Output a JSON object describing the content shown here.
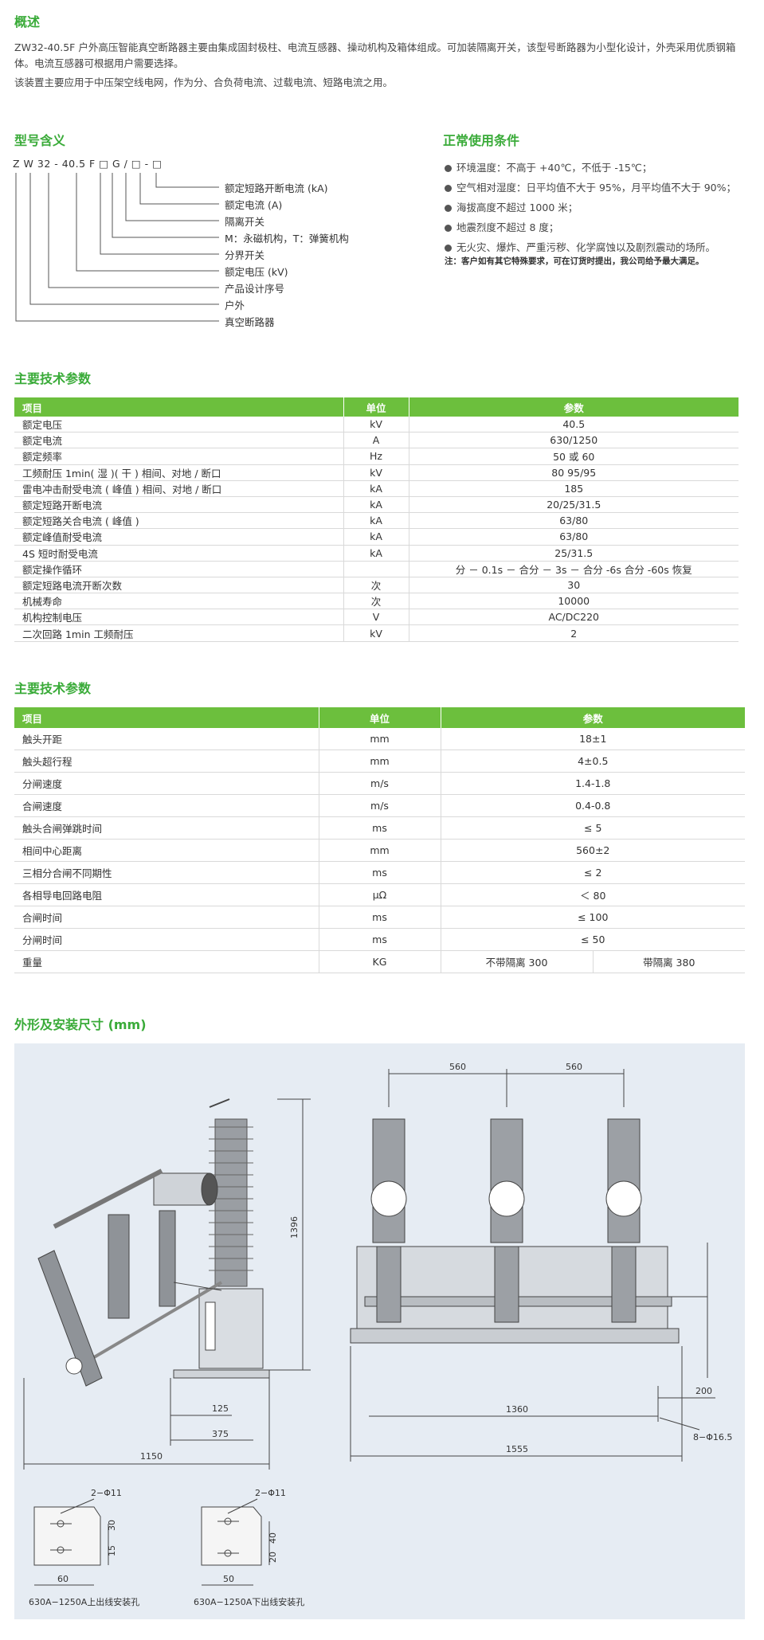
{
  "overview": {
    "title": "概述",
    "para1": "ZW32-40.5F 户外高压智能真空断路器主要由集成固封极柱、电流互感器、操动机构及箱体组成。可加装隔离开关，该型号断路器为小型化设计，外壳采用优质钢箱体。电流互感器可根据用户需要选择。",
    "para2": "该装置主要应用于中压架空线电网，作为分、合负荷电流、过载电流、短路电流之用。"
  },
  "model": {
    "title": "型号含义",
    "code": "Z W 32 - 40.5 F □ G / □ - □",
    "labels": [
      "额定短路开断电流 (kA)",
      "额定电流 (A)",
      "隔离开关",
      "M：永磁机构，T：弹簧机构",
      "分界开关",
      "额定电压 (kV)",
      "产品设计序号",
      "户外",
      "真空断路器"
    ]
  },
  "conditions": {
    "title": "正常使用条件",
    "items": [
      "环境温度：不高于 +40℃，不低于 -15℃；",
      "空气相对湿度：日平均值不大于 95%，月平均值不大于 90%；",
      "海拔高度不超过 1000 米；",
      "地震烈度不超过 8 度；",
      "无火灾、爆炸、严重污秽、化学腐蚀以及剧烈震动的场所。"
    ],
    "note": "注：客户如有其它特殊要求，可在订货时提出，我公司给予最大满足。"
  },
  "table1": {
    "title": "主要技术参数",
    "headers": [
      "项目",
      "单位",
      "参数"
    ],
    "rows": [
      [
        "额定电压",
        "kV",
        "40.5"
      ],
      [
        "额定电流",
        "A",
        "630/1250"
      ],
      [
        "额定频率",
        "Hz",
        "50 或 60"
      ],
      [
        "工频耐压 1min( 湿 )( 干 ) 相间、对地 / 断口",
        "kV",
        "80 95/95"
      ],
      [
        "雷电冲击耐受电流 ( 峰值 ) 相间、对地 / 断口",
        "kA",
        "185"
      ],
      [
        "额定短路开断电流",
        "kA",
        "20/25/31.5"
      ],
      [
        "额定短路关合电流 ( 峰值 )",
        "kA",
        "63/80"
      ],
      [
        "额定峰值耐受电流",
        "kA",
        "63/80"
      ],
      [
        "4S 短时耐受电流",
        "kA",
        "25/31.5"
      ],
      [
        "额定操作循环",
        "",
        "分 － 0.1s － 合分 － 3s － 合分 -6s 合分 -60s 恢复"
      ],
      [
        "额定短路电流开断次数",
        "次",
        "30"
      ],
      [
        "机械寿命",
        "次",
        "10000"
      ],
      [
        "机构控制电压",
        "V",
        "AC/DC220"
      ],
      [
        "二次回路 1min 工频耐压",
        "kV",
        "2"
      ]
    ]
  },
  "table2": {
    "title": "主要技术参数",
    "headers": [
      "项目",
      "单位",
      "参数"
    ],
    "rows": [
      [
        "触头开距",
        "mm",
        "18±1"
      ],
      [
        "触头超行程",
        "mm",
        "4±0.5"
      ],
      [
        "分闸速度",
        "m/s",
        "1.4-1.8"
      ],
      [
        "合闸速度",
        "m/s",
        "0.4-0.8"
      ],
      [
        "触头合闸弹跳时间",
        "ms",
        "≤ 5"
      ],
      [
        "相间中心距离",
        "mm",
        "560±2"
      ],
      [
        "三相分合闸不同期性",
        "ms",
        "≤ 2"
      ],
      [
        "各相导电回路电阻",
        "μΩ",
        "＜ 80"
      ],
      [
        "合闸时间",
        "ms",
        "≤ 100"
      ],
      [
        "分闸时间",
        "ms",
        "≤ 50"
      ]
    ],
    "weight": {
      "name": "重量",
      "unit": "KG",
      "without": "不带隔离 300",
      "with": "带隔离 380"
    }
  },
  "drawing": {
    "title": "外形及安装尺寸 (mm)",
    "dims": {
      "d1396": "1396",
      "d125": "125",
      "d375": "375",
      "d1150": "1150",
      "d560a": "560",
      "d560b": "560",
      "d200": "200",
      "d1360": "1360",
      "d1555": "1555",
      "hole": "8−Φ16.5"
    },
    "hole1": {
      "spec": "2−Φ11",
      "d30": "30",
      "d15": "15",
      "d60": "60",
      "caption": "630A−1250A上出线安装孔"
    },
    "hole2": {
      "spec": "2−Φ11",
      "d40": "40",
      "d20": "20",
      "d50": "50",
      "caption": "630A−1250A下出线安装孔"
    }
  }
}
